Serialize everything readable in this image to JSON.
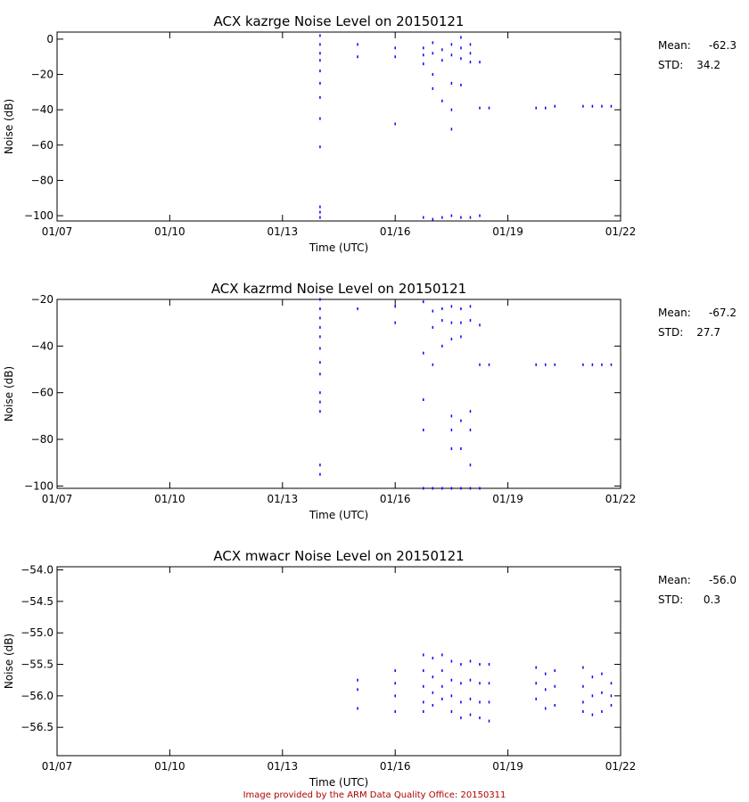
{
  "colors": {
    "points": "#0000ff",
    "axes": "#000000",
    "footer": "#b00000"
  },
  "footer": "Image provided by the ARM Data Quality Office: 20150311",
  "chart_data": [
    {
      "type": "scatter",
      "title": "ACX kazrge Noise Level on 20150121",
      "xlabel": "Time (UTC)",
      "ylabel": "Noise (dB)",
      "x_ticks": [
        "01/07",
        "01/10",
        "01/13",
        "01/16",
        "01/19",
        "01/22"
      ],
      "x_tick_values": [
        "2015-01-07",
        "2015-01-10",
        "2015-01-13",
        "2015-01-16",
        "2015-01-19",
        "2015-01-22"
      ],
      "ylim": [
        -103,
        4
      ],
      "y_ticks": [
        0,
        -20,
        -40,
        -60,
        -80,
        -100
      ],
      "y_tick_labels": [
        "0",
        "−20",
        "−40",
        "−60",
        "−80",
        "−100"
      ],
      "stats": {
        "mean_label": "Mean:",
        "mean": "-62.3",
        "std_label": "STD:",
        "std": "34.2"
      },
      "series": [
        {
          "points": [
            [
              "2015-01-14T00:00",
              2
            ],
            [
              "2015-01-14T00:00",
              -3
            ],
            [
              "2015-01-14T00:00",
              -8
            ],
            [
              "2015-01-14T00:00",
              -12
            ],
            [
              "2015-01-14T00:00",
              -18
            ],
            [
              "2015-01-14T00:00",
              -25
            ],
            [
              "2015-01-14T00:00",
              -33
            ],
            [
              "2015-01-14T00:00",
              -45
            ],
            [
              "2015-01-14T00:00",
              -61
            ],
            [
              "2015-01-14T00:00",
              -95
            ],
            [
              "2015-01-14T00:00",
              -98
            ],
            [
              "2015-01-14T00:00",
              -101
            ],
            [
              "2015-01-15T00:00",
              -3
            ],
            [
              "2015-01-15T00:00",
              -10
            ],
            [
              "2015-01-16T00:00",
              -5
            ],
            [
              "2015-01-16T00:00",
              -10
            ],
            [
              "2015-01-16T00:00",
              -48
            ],
            [
              "2015-01-16T18:00",
              -5
            ],
            [
              "2015-01-16T18:00",
              -9
            ],
            [
              "2015-01-16T18:00",
              -14
            ],
            [
              "2015-01-16T18:00",
              -101
            ],
            [
              "2015-01-17T00:00",
              -2
            ],
            [
              "2015-01-17T00:00",
              -8
            ],
            [
              "2015-01-17T00:00",
              -20
            ],
            [
              "2015-01-17T00:00",
              -28
            ],
            [
              "2015-01-17T00:00",
              -102
            ],
            [
              "2015-01-17T06:00",
              -6
            ],
            [
              "2015-01-17T06:00",
              -12
            ],
            [
              "2015-01-17T06:00",
              -35
            ],
            [
              "2015-01-17T06:00",
              -101
            ],
            [
              "2015-01-17T12:00",
              -3
            ],
            [
              "2015-01-17T12:00",
              -9
            ],
            [
              "2015-01-17T12:00",
              -25
            ],
            [
              "2015-01-17T12:00",
              -40
            ],
            [
              "2015-01-17T12:00",
              -51
            ],
            [
              "2015-01-17T12:00",
              -100
            ],
            [
              "2015-01-17T18:00",
              1
            ],
            [
              "2015-01-17T18:00",
              -5
            ],
            [
              "2015-01-17T18:00",
              -11
            ],
            [
              "2015-01-17T18:00",
              -26
            ],
            [
              "2015-01-17T18:00",
              -101
            ],
            [
              "2015-01-18T00:00",
              -3
            ],
            [
              "2015-01-18T00:00",
              -8
            ],
            [
              "2015-01-18T00:00",
              -13
            ],
            [
              "2015-01-18T00:00",
              -101
            ],
            [
              "2015-01-18T06:00",
              -13
            ],
            [
              "2015-01-18T06:00",
              -39
            ],
            [
              "2015-01-18T06:00",
              -100
            ],
            [
              "2015-01-18T12:00",
              -39
            ],
            [
              "2015-01-19T18:00",
              -39
            ],
            [
              "2015-01-20T00:00",
              -39
            ],
            [
              "2015-01-20T06:00",
              -38
            ],
            [
              "2015-01-21T00:00",
              -38
            ],
            [
              "2015-01-21T06:00",
              -38
            ],
            [
              "2015-01-21T12:00",
              -38
            ],
            [
              "2015-01-21T18:00",
              -38
            ]
          ]
        }
      ]
    },
    {
      "type": "scatter",
      "title": "ACX kazrmd Noise Level on 20150121",
      "xlabel": "Time (UTC)",
      "ylabel": "Noise (dB)",
      "x_ticks": [
        "01/07",
        "01/10",
        "01/13",
        "01/16",
        "01/19",
        "01/22"
      ],
      "x_tick_values": [
        "2015-01-07",
        "2015-01-10",
        "2015-01-13",
        "2015-01-16",
        "2015-01-19",
        "2015-01-22"
      ],
      "ylim": [
        -101,
        -20
      ],
      "y_ticks": [
        -20,
        -40,
        -60,
        -80,
        -100
      ],
      "y_tick_labels": [
        "−20",
        "−40",
        "−60",
        "−80",
        "−100"
      ],
      "stats": {
        "mean_label": "Mean:",
        "mean": "-67.2",
        "std_label": "STD:",
        "std": "27.7"
      },
      "series": [
        {
          "points": [
            [
              "2015-01-14T00:00",
              -20
            ],
            [
              "2015-01-14T00:00",
              -24
            ],
            [
              "2015-01-14T00:00",
              -28
            ],
            [
              "2015-01-14T00:00",
              -32
            ],
            [
              "2015-01-14T00:00",
              -36
            ],
            [
              "2015-01-14T00:00",
              -41
            ],
            [
              "2015-01-14T00:00",
              -47
            ],
            [
              "2015-01-14T00:00",
              -52
            ],
            [
              "2015-01-14T00:00",
              -60
            ],
            [
              "2015-01-14T00:00",
              -64
            ],
            [
              "2015-01-14T00:00",
              -68
            ],
            [
              "2015-01-14T00:00",
              -91
            ],
            [
              "2015-01-14T00:00",
              -95
            ],
            [
              "2015-01-15T00:00",
              -24
            ],
            [
              "2015-01-16T00:00",
              -23
            ],
            [
              "2015-01-16T00:00",
              -30
            ],
            [
              "2015-01-16T18:00",
              -21
            ],
            [
              "2015-01-16T18:00",
              -43
            ],
            [
              "2015-01-16T18:00",
              -63
            ],
            [
              "2015-01-16T18:00",
              -76
            ],
            [
              "2015-01-16T18:00",
              -101
            ],
            [
              "2015-01-17T00:00",
              -25
            ],
            [
              "2015-01-17T00:00",
              -32
            ],
            [
              "2015-01-17T00:00",
              -48
            ],
            [
              "2015-01-17T00:00",
              -101
            ],
            [
              "2015-01-17T06:00",
              -24
            ],
            [
              "2015-01-17T06:00",
              -29
            ],
            [
              "2015-01-17T06:00",
              -40
            ],
            [
              "2015-01-17T06:00",
              -101
            ],
            [
              "2015-01-17T12:00",
              -23
            ],
            [
              "2015-01-17T12:00",
              -30
            ],
            [
              "2015-01-17T12:00",
              -37
            ],
            [
              "2015-01-17T12:00",
              -70
            ],
            [
              "2015-01-17T12:00",
              -76
            ],
            [
              "2015-01-17T12:00",
              -84
            ],
            [
              "2015-01-17T12:00",
              -101
            ],
            [
              "2015-01-17T18:00",
              -24
            ],
            [
              "2015-01-17T18:00",
              -30
            ],
            [
              "2015-01-17T18:00",
              -36
            ],
            [
              "2015-01-17T18:00",
              -72
            ],
            [
              "2015-01-17T18:00",
              -84
            ],
            [
              "2015-01-17T18:00",
              -101
            ],
            [
              "2015-01-18T00:00",
              -23
            ],
            [
              "2015-01-18T00:00",
              -29
            ],
            [
              "2015-01-18T00:00",
              -68
            ],
            [
              "2015-01-18T00:00",
              -76
            ],
            [
              "2015-01-18T00:00",
              -91
            ],
            [
              "2015-01-18T00:00",
              -101
            ],
            [
              "2015-01-18T06:00",
              -31
            ],
            [
              "2015-01-18T06:00",
              -48
            ],
            [
              "2015-01-18T06:00",
              -101
            ],
            [
              "2015-01-18T12:00",
              -48
            ],
            [
              "2015-01-19T18:00",
              -48
            ],
            [
              "2015-01-20T00:00",
              -48
            ],
            [
              "2015-01-20T06:00",
              -48
            ],
            [
              "2015-01-21T00:00",
              -48
            ],
            [
              "2015-01-21T06:00",
              -48
            ],
            [
              "2015-01-21T12:00",
              -48
            ],
            [
              "2015-01-21T18:00",
              -48
            ]
          ]
        }
      ]
    },
    {
      "type": "scatter",
      "title": "ACX mwacr Noise Level on 20150121",
      "xlabel": "Time (UTC)",
      "ylabel": "Noise (dB)",
      "x_ticks": [
        "01/07",
        "01/10",
        "01/13",
        "01/16",
        "01/19",
        "01/22"
      ],
      "x_tick_values": [
        "2015-01-07",
        "2015-01-10",
        "2015-01-13",
        "2015-01-16",
        "2015-01-19",
        "2015-01-22"
      ],
      "ylim": [
        -56.95,
        -53.95
      ],
      "y_ticks": [
        -54.0,
        -54.5,
        -55.0,
        -55.5,
        -56.0,
        -56.5
      ],
      "y_tick_labels": [
        "−54.0",
        "−54.5",
        "−55.0",
        "−55.5",
        "−56.0",
        "−56.5"
      ],
      "stats": {
        "mean_label": "Mean:",
        "mean": "-56.0",
        "std_label": "STD:",
        "std": "0.3"
      },
      "series": [
        {
          "points": [
            [
              "2015-01-15T00:00",
              -55.75
            ],
            [
              "2015-01-15T00:00",
              -55.9
            ],
            [
              "2015-01-15T00:00",
              -56.2
            ],
            [
              "2015-01-16T00:00",
              -55.6
            ],
            [
              "2015-01-16T00:00",
              -55.8
            ],
            [
              "2015-01-16T00:00",
              -56.0
            ],
            [
              "2015-01-16T00:00",
              -56.25
            ],
            [
              "2015-01-16T18:00",
              -55.35
            ],
            [
              "2015-01-16T18:00",
              -55.6
            ],
            [
              "2015-01-16T18:00",
              -55.85
            ],
            [
              "2015-01-16T18:00",
              -56.1
            ],
            [
              "2015-01-16T18:00",
              -56.25
            ],
            [
              "2015-01-17T00:00",
              -55.4
            ],
            [
              "2015-01-17T00:00",
              -55.7
            ],
            [
              "2015-01-17T00:00",
              -55.95
            ],
            [
              "2015-01-17T00:00",
              -56.15
            ],
            [
              "2015-01-17T06:00",
              -55.35
            ],
            [
              "2015-01-17T06:00",
              -55.6
            ],
            [
              "2015-01-17T06:00",
              -55.85
            ],
            [
              "2015-01-17T06:00",
              -56.05
            ],
            [
              "2015-01-17T12:00",
              -55.45
            ],
            [
              "2015-01-17T12:00",
              -55.75
            ],
            [
              "2015-01-17T12:00",
              -56.0
            ],
            [
              "2015-01-17T12:00",
              -56.25
            ],
            [
              "2015-01-17T18:00",
              -55.5
            ],
            [
              "2015-01-17T18:00",
              -55.8
            ],
            [
              "2015-01-17T18:00",
              -56.1
            ],
            [
              "2015-01-17T18:00",
              -56.35
            ],
            [
              "2015-01-18T00:00",
              -55.45
            ],
            [
              "2015-01-18T00:00",
              -55.75
            ],
            [
              "2015-01-18T00:00",
              -56.05
            ],
            [
              "2015-01-18T00:00",
              -56.3
            ],
            [
              "2015-01-18T06:00",
              -55.5
            ],
            [
              "2015-01-18T06:00",
              -55.8
            ],
            [
              "2015-01-18T06:00",
              -56.1
            ],
            [
              "2015-01-18T06:00",
              -56.35
            ],
            [
              "2015-01-18T12:00",
              -55.5
            ],
            [
              "2015-01-18T12:00",
              -55.8
            ],
            [
              "2015-01-18T12:00",
              -56.1
            ],
            [
              "2015-01-18T12:00",
              -56.4
            ],
            [
              "2015-01-19T18:00",
              -55.55
            ],
            [
              "2015-01-19T18:00",
              -55.8
            ],
            [
              "2015-01-19T18:00",
              -56.05
            ],
            [
              "2015-01-20T00:00",
              -55.65
            ],
            [
              "2015-01-20T00:00",
              -55.9
            ],
            [
              "2015-01-20T00:00",
              -56.2
            ],
            [
              "2015-01-20T06:00",
              -55.6
            ],
            [
              "2015-01-20T06:00",
              -55.85
            ],
            [
              "2015-01-20T06:00",
              -56.15
            ],
            [
              "2015-01-21T00:00",
              -55.55
            ],
            [
              "2015-01-21T00:00",
              -55.85
            ],
            [
              "2015-01-21T00:00",
              -56.1
            ],
            [
              "2015-01-21T00:00",
              -56.25
            ],
            [
              "2015-01-21T06:00",
              -55.7
            ],
            [
              "2015-01-21T06:00",
              -56.0
            ],
            [
              "2015-01-21T06:00",
              -56.3
            ],
            [
              "2015-01-21T12:00",
              -55.65
            ],
            [
              "2015-01-21T12:00",
              -55.95
            ],
            [
              "2015-01-21T12:00",
              -56.25
            ],
            [
              "2015-01-21T18:00",
              -55.8
            ],
            [
              "2015-01-21T18:00",
              -56.0
            ],
            [
              "2015-01-21T18:00",
              -56.15
            ]
          ]
        }
      ]
    }
  ]
}
